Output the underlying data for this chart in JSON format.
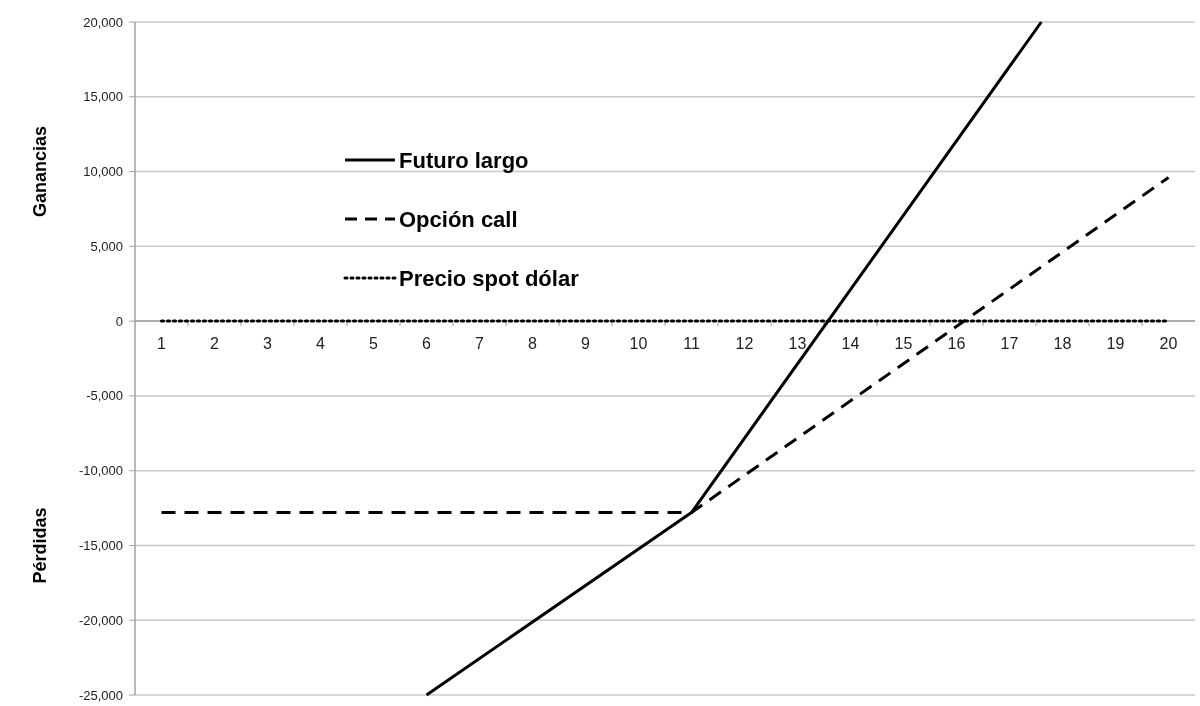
{
  "chart_data": {
    "type": "line",
    "ylabel": "Ganancias",
    "annotations": [
      "Pérdidas"
    ],
    "xlim": [
      0.5,
      20.5
    ],
    "xticks": [
      1,
      2,
      3,
      4,
      5,
      6,
      7,
      8,
      9,
      10,
      11,
      12,
      13,
      14,
      15,
      16,
      17,
      18,
      19,
      20,
      {
        "value": 1.5,
        "label": null
      },
      {
        "value": 2.5,
        "label": null
      },
      {
        "value": 3.5,
        "label": null
      },
      {
        "value": 4.5,
        "label": null
      },
      {
        "value": 5.5,
        "label": null
      },
      {
        "value": 6.5,
        "label": null
      },
      {
        "value": 7.5,
        "label": null
      },
      {
        "value": 8.5,
        "label": null
      },
      {
        "value": 9.5,
        "label": null
      },
      {
        "value": 10.5,
        "label": null
      },
      {
        "value": 11.5,
        "label": null
      },
      {
        "value": 12.5,
        "label": null
      },
      {
        "value": 13.5,
        "label": null
      },
      {
        "value": 14.5,
        "label": null
      },
      {
        "value": 15.5,
        "label": null
      },
      {
        "value": 16.5,
        "label": null
      },
      {
        "value": 17.5,
        "label": null
      },
      {
        "value": 18.5,
        "label": null
      },
      {
        "value": 19.5,
        "label": null
      }
    ],
    "ylim": [
      -25000,
      20000
    ],
    "yticks": [
      {
        "value": -25000,
        "label": "-25,000"
      },
      {
        "value": -20000,
        "label": "-20,000"
      },
      {
        "value": -15000,
        "label": "-15,000"
      },
      {
        "value": -10000,
        "label": "-10,000"
      },
      {
        "value": -5000,
        "label": "-5,000"
      },
      0,
      {
        "value": 5000,
        "label": "5,000"
      },
      {
        "value": 10000,
        "label": "10,000"
      },
      {
        "value": 15000,
        "label": "15,000"
      },
      {
        "value": 20000,
        "label": "20,000"
      }
    ],
    "grid": "y",
    "legend": "top left",
    "marker": "none",
    "series": [
      {
        "name": "Futuro largo",
        "color": "#000000",
        "line_style": "solid",
        "x": [
          6,
          11,
          17.6
        ],
        "values": [
          -25000,
          -12800,
          20000
        ]
      },
      {
        "name": "Opción call",
        "color": "#000000",
        "line_style": "dashed",
        "x": [
          1,
          11,
          20
        ],
        "values": [
          -12800,
          -12800,
          9600
        ]
      },
      {
        "name": "Precio spot dólar",
        "color": "#000000",
        "line_style": "dotted",
        "x": [
          1,
          20
        ],
        "values": [
          0,
          0
        ]
      }
    ]
  }
}
